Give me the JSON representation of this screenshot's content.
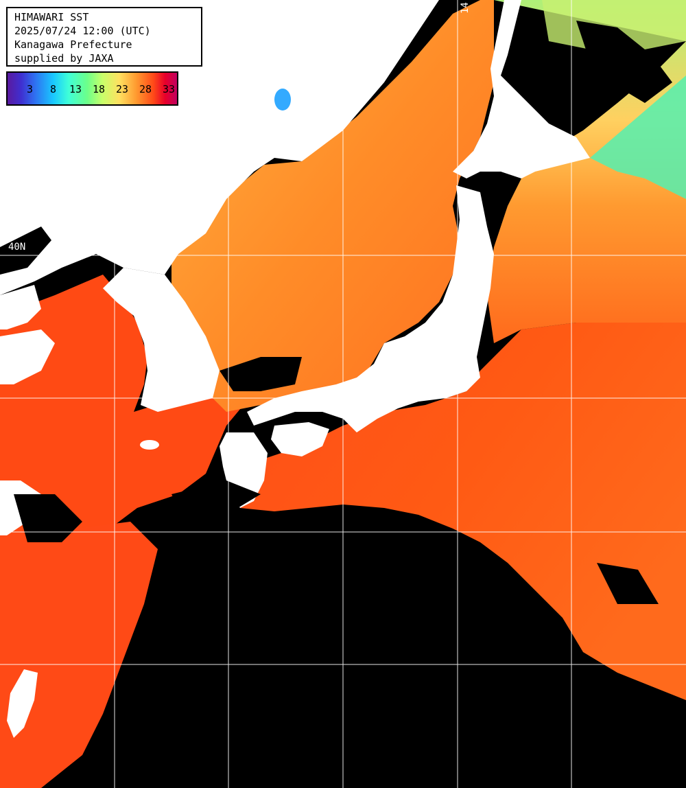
{
  "title": "HIMAWARI SST",
  "datetime": "2025/07/24 12:00 (UTC)",
  "region": "Kanagawa Prefecture",
  "credit": "supplied by JAXA",
  "colorbar": {
    "ticks": [
      "3",
      "8",
      "13",
      "18",
      "23",
      "28",
      "33"
    ],
    "colors": {
      "cold": "#5a1aa0",
      "cool": "#19c8ff",
      "mild": "#6cff8a",
      "warm": "#ff9a30",
      "hot": "#e8002a"
    }
  },
  "grid_labels": {
    "lat": "40N",
    "lon": "14"
  },
  "map_colors": {
    "land": "#ffffff",
    "no_data": "#000000",
    "warm_sea": "#ff5a14",
    "mid_sea": "#ff8c28",
    "cool_sea": "#9cf08c",
    "cold_sea": "#33ffc8",
    "grid": "#ffffff"
  }
}
